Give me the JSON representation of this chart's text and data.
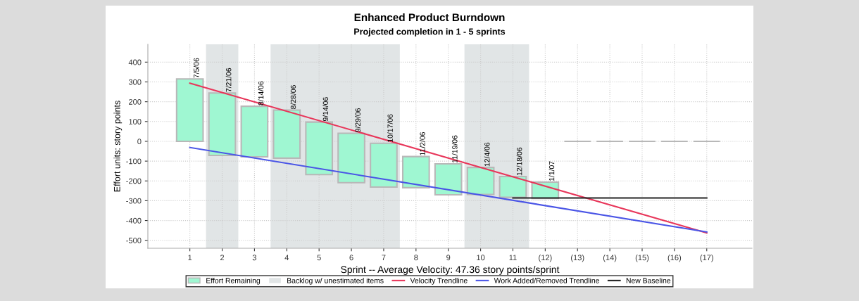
{
  "chart_data": {
    "type": "bar",
    "title": "Enhanced Product Burndown",
    "subtitle": "Projected completion in 1 - 5 sprints",
    "xlabel": "Sprint -- Average Velocity: 47.36 story points/sprint",
    "ylabel": "Effort units: story points",
    "series": [
      {
        "name": "Effort Remaining",
        "color": "#9ff7d2",
        "x": [
          1,
          2,
          3,
          4,
          5,
          6,
          7,
          8,
          9,
          10,
          11,
          12
        ],
        "values": [
          315,
          315,
          255,
          243,
          265,
          250,
          221,
          157,
          156,
          136,
          105,
          83
        ],
        "base": [
          0,
          -71,
          -78,
          -85,
          -168,
          -209,
          -231,
          -234,
          -270,
          -268,
          -283,
          -289
        ],
        "value_labels": [
          "7/5/06",
          "7/21/06",
          "8/14/06",
          "8/28/06",
          "9/14/06",
          "9/29/06",
          "10/17/06",
          "11/2/06",
          "11/19/06",
          "12/4/06",
          "12/18/06",
          "1/1/07"
        ]
      },
      {
        "color": "#b8b8b8",
        "x": [
          13,
          14,
          15,
          16,
          17
        ],
        "values": [
          0,
          0,
          0,
          0,
          0
        ]
      },
      {
        "name": "Velocity Trendline",
        "type": "line",
        "color": "#e8365a",
        "x": [
          1,
          17
        ],
        "values": [
          294,
          -463
        ]
      },
      {
        "name": "Work Added/Removed Trendline",
        "type": "line",
        "color": "#4a55e6",
        "x": [
          1,
          17
        ],
        "values": [
          -31,
          -458
        ]
      },
      {
        "name": "New Baseline",
        "type": "line",
        "color": "#222222",
        "x": [
          11,
          17
        ],
        "values": [
          -286,
          -286
        ]
      }
    ],
    "bands": [
      {
        "axis": "x",
        "from": 1.5,
        "to": 2.5,
        "label": "Backlog w/ unestimated items",
        "color": "#e1e5e6"
      },
      {
        "axis": "x",
        "from": 3.5,
        "to": 7.5,
        "color": "#e1e5e6"
      },
      {
        "axis": "x",
        "from": 9.5,
        "to": 11.5,
        "color": "#e1e5e6"
      }
    ],
    "xlim": [
      -0.3,
      18.4
    ],
    "xticks": [
      1,
      2,
      3,
      4,
      5,
      6,
      7,
      8,
      9,
      10,
      11,
      {
        "value": 12,
        "label": "(12)"
      },
      {
        "value": 13,
        "label": "(13)"
      },
      {
        "value": 14,
        "label": "(14)"
      },
      {
        "value": 15,
        "label": "(15)"
      },
      {
        "value": 16,
        "label": "(16)"
      },
      {
        "value": 17,
        "label": "(17)"
      }
    ],
    "ylim": [
      -540,
      490
    ],
    "yticks": [
      -500,
      -400,
      -300,
      -200,
      -100,
      0,
      100,
      200,
      300,
      400
    ],
    "grid": true,
    "legend": "bottom"
  }
}
